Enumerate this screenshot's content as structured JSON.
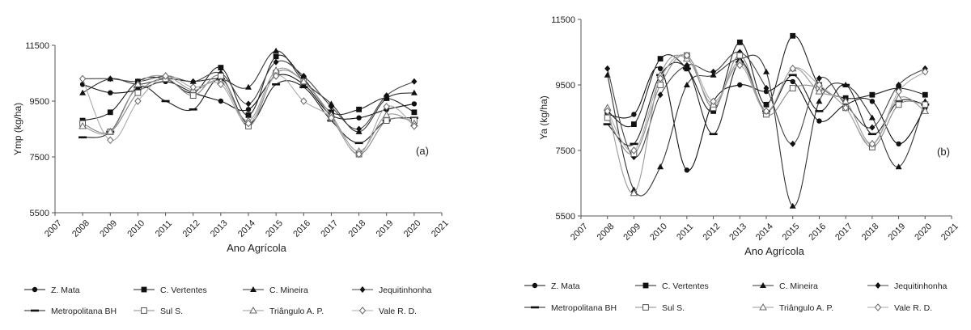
{
  "chart_data": [
    {
      "type": "line",
      "panel_label": "(a)",
      "xlabel": "Ano Agrícola",
      "ylabel": "Ymp (kg/ha)",
      "xlim": [
        2007,
        2021
      ],
      "ylim": [
        5500,
        11500
      ],
      "xticks": [
        "2007",
        "2008",
        "2009",
        "2010",
        "2011",
        "2012",
        "2013",
        "2014",
        "2015",
        "2016",
        "2017",
        "2018",
        "2019",
        "2020",
        "2021"
      ],
      "yticks": [
        "5500",
        "7500",
        "9500",
        "11500"
      ],
      "x": [
        2008,
        2009,
        2010,
        2011,
        2012,
        2013,
        2014,
        2015,
        2016,
        2017,
        2018,
        2019,
        2020
      ],
      "series": [
        {
          "name": "Z. Mata",
          "marker": "circle",
          "values": [
            10100,
            9800,
            9900,
            10200,
            9800,
            9500,
            9200,
            10400,
            10100,
            9000,
            8900,
            9200,
            9400
          ]
        },
        {
          "name": "C. Vertentes",
          "marker": "square",
          "values": [
            8800,
            9100,
            10200,
            10300,
            9800,
            10700,
            9000,
            11100,
            10300,
            9100,
            9200,
            9600,
            9100
          ]
        },
        {
          "name": "C. Mineira",
          "marker": "triangle",
          "values": [
            9800,
            10300,
            10100,
            10300,
            10200,
            10300,
            10000,
            11300,
            10200,
            9400,
            8400,
            9600,
            9800
          ]
        },
        {
          "name": "Jequitinhonha",
          "marker": "diamond",
          "values": [
            10300,
            10300,
            10200,
            10400,
            10200,
            10500,
            9400,
            10900,
            10400,
            9300,
            8500,
            9700,
            10200
          ]
        },
        {
          "name": "Metropolitana BH",
          "marker": "dash",
          "values": [
            8200,
            8400,
            10000,
            9500,
            9200,
            10300,
            8700,
            10100,
            10000,
            8800,
            8000,
            8800,
            8900
          ]
        },
        {
          "name": "Sul S.",
          "marker": "hollow-square",
          "values": [
            8700,
            8400,
            9800,
            10300,
            9700,
            10400,
            8600,
            10500,
            10200,
            8900,
            7600,
            8800,
            8800
          ]
        },
        {
          "name": "Triângulo A. P.",
          "marker": "hollow-triangle",
          "values": [
            8600,
            8400,
            10100,
            10400,
            9900,
            10200,
            8800,
            10600,
            10200,
            9000,
            7700,
            9000,
            8700
          ]
        },
        {
          "name": "Vale R. D.",
          "marker": "hollow-diamond",
          "values": [
            10300,
            8100,
            9500,
            10400,
            10000,
            10100,
            8700,
            10400,
            9500,
            8900,
            7600,
            9300,
            8600
          ]
        }
      ]
    },
    {
      "type": "line",
      "panel_label": "(b)",
      "xlabel": "Ano Agrícola",
      "ylabel": "Ya (kg/ha)",
      "xlim": [
        2007,
        2021
      ],
      "ylim": [
        5500,
        11500
      ],
      "xticks": [
        "2007",
        "2008",
        "2009",
        "2010",
        "2011",
        "2012",
        "2013",
        "2014",
        "2015",
        "2016",
        "2017",
        "2018",
        "2019",
        "2020",
        "2021"
      ],
      "yticks": [
        "5500",
        "7500",
        "9500",
        "11500"
      ],
      "x": [
        2008,
        2009,
        2010,
        2011,
        2012,
        2013,
        2014,
        2015,
        2016,
        2017,
        2018,
        2019,
        2020
      ],
      "series": [
        {
          "name": "Z. Mata",
          "marker": "circle",
          "values": [
            8600,
            8600,
            10000,
            6900,
            9000,
            9500,
            9300,
            9600,
            8400,
            8900,
            9000,
            7700,
            8800
          ]
        },
        {
          "name": "C. Vertentes",
          "marker": "square",
          "values": [
            8700,
            8300,
            10300,
            10000,
            8700,
            10800,
            8900,
            11000,
            9500,
            9100,
            9200,
            9400,
            9200
          ]
        },
        {
          "name": "C. Mineira",
          "marker": "triangle",
          "values": [
            9800,
            6300,
            7000,
            9500,
            9800,
            10300,
            9900,
            5800,
            9000,
            9500,
            8500,
            7000,
            9000
          ]
        },
        {
          "name": "Jequitinhonha",
          "marker": "diamond",
          "values": [
            10000,
            7300,
            9200,
            10100,
            9900,
            10500,
            9400,
            7700,
            9700,
            8900,
            8200,
            9500,
            10000
          ]
        },
        {
          "name": "Metropolitana BH",
          "marker": "dash",
          "values": [
            8300,
            7700,
            9800,
            10000,
            8000,
            10200,
            8700,
            9800,
            8700,
            9500,
            8000,
            9000,
            8900
          ]
        },
        {
          "name": "Sul S.",
          "marker": "hollow-square",
          "values": [
            8500,
            7400,
            9500,
            10400,
            8800,
            10400,
            8600,
            9400,
            9400,
            8800,
            7600,
            8900,
            8900
          ]
        },
        {
          "name": "Triângulo A. P.",
          "marker": "hollow-triangle",
          "values": [
            8800,
            6200,
            9800,
            10300,
            8900,
            10200,
            8700,
            10000,
            9300,
            9000,
            7700,
            9100,
            8700
          ]
        },
        {
          "name": "Vale R. D.",
          "marker": "hollow-diamond",
          "values": [
            8700,
            7500,
            9700,
            10400,
            9000,
            10100,
            8700,
            10000,
            9500,
            8800,
            7700,
            9300,
            9900
          ]
        }
      ]
    }
  ]
}
